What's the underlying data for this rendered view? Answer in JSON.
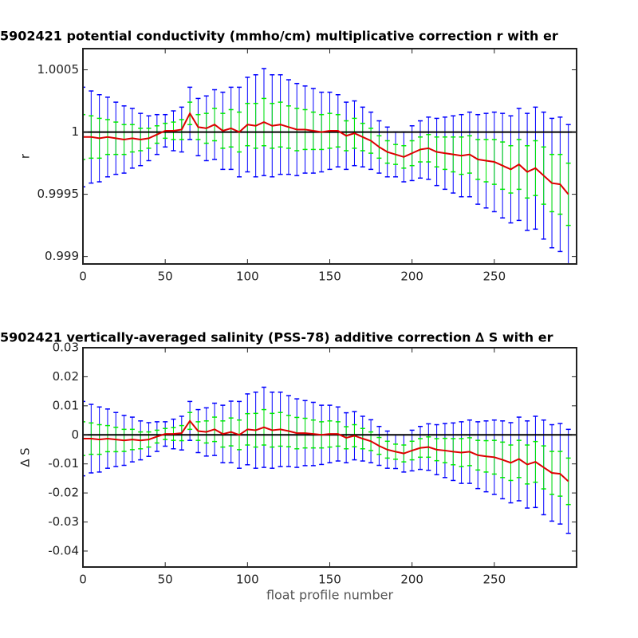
{
  "chart_data": [
    {
      "type": "line",
      "title": "5902421 potential conductivity (mmho/cm) multiplicative correction r with er",
      "ylabel": "r",
      "xlim": [
        0,
        300
      ],
      "xticks": [
        0,
        50,
        100,
        150,
        200,
        250
      ],
      "ylim": [
        0.99894,
        1.00067
      ],
      "yticks": [
        0.999,
        0.9995,
        1,
        1.0005
      ],
      "hline": 1,
      "hline_color": "#000000",
      "x": [
        0,
        5,
        10,
        15,
        20,
        25,
        30,
        35,
        40,
        45,
        50,
        55,
        60,
        65,
        70,
        75,
        80,
        85,
        90,
        95,
        100,
        105,
        110,
        115,
        120,
        125,
        130,
        135,
        140,
        145,
        150,
        155,
        160,
        165,
        170,
        175,
        180,
        185,
        190,
        195,
        200,
        205,
        210,
        215,
        220,
        225,
        230,
        235,
        240,
        245,
        250,
        255,
        260,
        265,
        270,
        275,
        280,
        285,
        290,
        295
      ],
      "values": [
        0.99996,
        0.99996,
        0.99995,
        0.99996,
        0.99995,
        0.99994,
        0.99995,
        0.99994,
        0.99995,
        0.99998,
        1.00001,
        1.00001,
        1.00002,
        1.00015,
        1.00004,
        1.00003,
        1.00006,
        1.00001,
        1.00003,
        1,
        1.00006,
        1.00005,
        1.00008,
        1.00005,
        1.00006,
        1.00004,
        1.00002,
        1.00002,
        1.00001,
        1,
        1.00001,
        1.00001,
        0.99997,
        0.99999,
        0.99996,
        0.99993,
        0.99988,
        0.99984,
        0.99982,
        0.9998,
        0.99983,
        0.99986,
        0.99987,
        0.99984,
        0.99983,
        0.99982,
        0.99981,
        0.99982,
        0.99978,
        0.99977,
        0.99976,
        0.99973,
        0.9997,
        0.99974,
        0.99968,
        0.99971,
        0.99965,
        0.99959,
        0.99958,
        0.9995
      ],
      "color": "#dd0000",
      "error_bars": [
        {
          "color": "#0000ff",
          "values": [
            0.0004,
            0.00037,
            0.00035,
            0.00032,
            0.00029,
            0.00027,
            0.00024,
            0.00021,
            0.00018,
            0.00016,
            0.00013,
            0.00016,
            0.00018,
            0.00021,
            0.00023,
            0.00026,
            0.00028,
            0.00031,
            0.00033,
            0.00036,
            0.00038,
            0.00041,
            0.00043,
            0.00041,
            0.0004,
            0.00038,
            0.00037,
            0.00035,
            0.00034,
            0.00032,
            0.00031,
            0.00029,
            0.00027,
            0.00026,
            0.00024,
            0.00023,
            0.00021,
            0.0002,
            0.00018,
            0.0002,
            0.00022,
            0.00023,
            0.00025,
            0.00027,
            0.00029,
            0.00031,
            0.00033,
            0.00034,
            0.00036,
            0.00038,
            0.0004,
            0.00042,
            0.00043,
            0.00045,
            0.00047,
            0.00049,
            0.00051,
            0.00052,
            0.00054,
            0.00056
          ]
        },
        {
          "color": "#00ee00",
          "values": [
            0.00018,
            0.00017,
            0.00016,
            0.00014,
            0.00013,
            0.00012,
            0.00011,
            9e-05,
            8e-05,
            7e-05,
            6e-05,
            7e-05,
            8e-05,
            9e-05,
            0.0001,
            0.00012,
            0.00013,
            0.00014,
            0.00015,
            0.00016,
            0.00017,
            0.00018,
            0.00019,
            0.00018,
            0.00018,
            0.00017,
            0.00017,
            0.00016,
            0.00015,
            0.00014,
            0.00014,
            0.00013,
            0.00012,
            0.00012,
            0.00011,
            0.0001,
            9e-05,
            9e-05,
            8e-05,
            9e-05,
            0.0001,
            0.0001,
            0.00011,
            0.00012,
            0.00013,
            0.00014,
            0.00015,
            0.00015,
            0.00016,
            0.00017,
            0.00018,
            0.00019,
            0.00019,
            0.0002,
            0.00021,
            0.00022,
            0.00023,
            0.00023,
            0.00024,
            0.00025
          ]
        }
      ]
    },
    {
      "type": "line",
      "title": "5902421 vertically-averaged salinity (PSS-78) additive correction ∆ S with er",
      "ylabel": "∆ S",
      "xlabel": "float profile number",
      "xlim": [
        0,
        300
      ],
      "xticks": [
        0,
        50,
        100,
        150,
        200,
        250
      ],
      "ylim": [
        -0.0455,
        0.03
      ],
      "yticks": [
        -0.04,
        -0.03,
        -0.02,
        -0.01,
        0,
        0.01,
        0.02,
        0.03
      ],
      "hline": 0,
      "hline_color": "#000000",
      "x": [
        0,
        5,
        10,
        15,
        20,
        25,
        30,
        35,
        40,
        45,
        50,
        55,
        60,
        65,
        70,
        75,
        80,
        85,
        90,
        95,
        100,
        105,
        110,
        115,
        120,
        125,
        130,
        135,
        140,
        145,
        150,
        155,
        160,
        165,
        170,
        175,
        180,
        185,
        190,
        195,
        200,
        205,
        210,
        215,
        220,
        225,
        230,
        235,
        240,
        245,
        250,
        255,
        260,
        265,
        270,
        275,
        280,
        285,
        290,
        295
      ],
      "values": [
        -0.0013,
        -0.0013,
        -0.0016,
        -0.0013,
        -0.0016,
        -0.0019,
        -0.0016,
        -0.0019,
        -0.0016,
        -0.0006,
        0.0003,
        0.0003,
        0.0006,
        0.0048,
        0.0013,
        0.001,
        0.0019,
        0.0003,
        0.001,
        0,
        0.0019,
        0.0016,
        0.0026,
        0.0016,
        0.0019,
        0.0013,
        0.0006,
        0.0006,
        0.0003,
        0,
        0.0003,
        0.0003,
        -0.001,
        -0.0003,
        -0.0013,
        -0.0022,
        -0.0038,
        -0.0051,
        -0.0058,
        -0.0064,
        -0.0054,
        -0.0045,
        -0.0042,
        -0.0051,
        -0.0054,
        -0.0058,
        -0.0061,
        -0.0058,
        -0.007,
        -0.0074,
        -0.0077,
        -0.0086,
        -0.0096,
        -0.0083,
        -0.0102,
        -0.0093,
        -0.0112,
        -0.0131,
        -0.0134,
        -0.016
      ],
      "color": "#dd0000",
      "error_bars": [
        {
          "color": "#0000ff",
          "values": [
            0.0128,
            0.0118,
            0.0112,
            0.0102,
            0.0093,
            0.0086,
            0.0077,
            0.0067,
            0.0058,
            0.0051,
            0.0042,
            0.0051,
            0.0058,
            0.0067,
            0.0074,
            0.0083,
            0.009,
            0.0099,
            0.0106,
            0.0115,
            0.0122,
            0.0131,
            0.0138,
            0.0131,
            0.0128,
            0.0122,
            0.0118,
            0.0112,
            0.0109,
            0.0102,
            0.0099,
            0.0093,
            0.0086,
            0.0083,
            0.0077,
            0.0074,
            0.0067,
            0.0064,
            0.0058,
            0.0064,
            0.007,
            0.0074,
            0.008,
            0.0086,
            0.0093,
            0.0099,
            0.0106,
            0.0109,
            0.0115,
            0.0122,
            0.0128,
            0.0134,
            0.0138,
            0.0144,
            0.015,
            0.0157,
            0.0163,
            0.0166,
            0.0173,
            0.0179
          ]
        },
        {
          "color": "#00ee00",
          "values": [
            0.0058,
            0.0054,
            0.0051,
            0.0045,
            0.0042,
            0.0038,
            0.0035,
            0.0029,
            0.0026,
            0.0022,
            0.0019,
            0.0022,
            0.0026,
            0.0029,
            0.0032,
            0.0038,
            0.0042,
            0.0045,
            0.0048,
            0.0051,
            0.0054,
            0.0058,
            0.0061,
            0.0058,
            0.0058,
            0.0054,
            0.0054,
            0.0051,
            0.0048,
            0.0045,
            0.0045,
            0.0042,
            0.0038,
            0.0038,
            0.0035,
            0.0032,
            0.0029,
            0.0029,
            0.0026,
            0.0029,
            0.0032,
            0.0032,
            0.0035,
            0.0038,
            0.0042,
            0.0045,
            0.0048,
            0.0048,
            0.0051,
            0.0054,
            0.0058,
            0.0061,
            0.0061,
            0.0064,
            0.0067,
            0.007,
            0.0074,
            0.0074,
            0.0077,
            0.008
          ]
        }
      ]
    }
  ]
}
